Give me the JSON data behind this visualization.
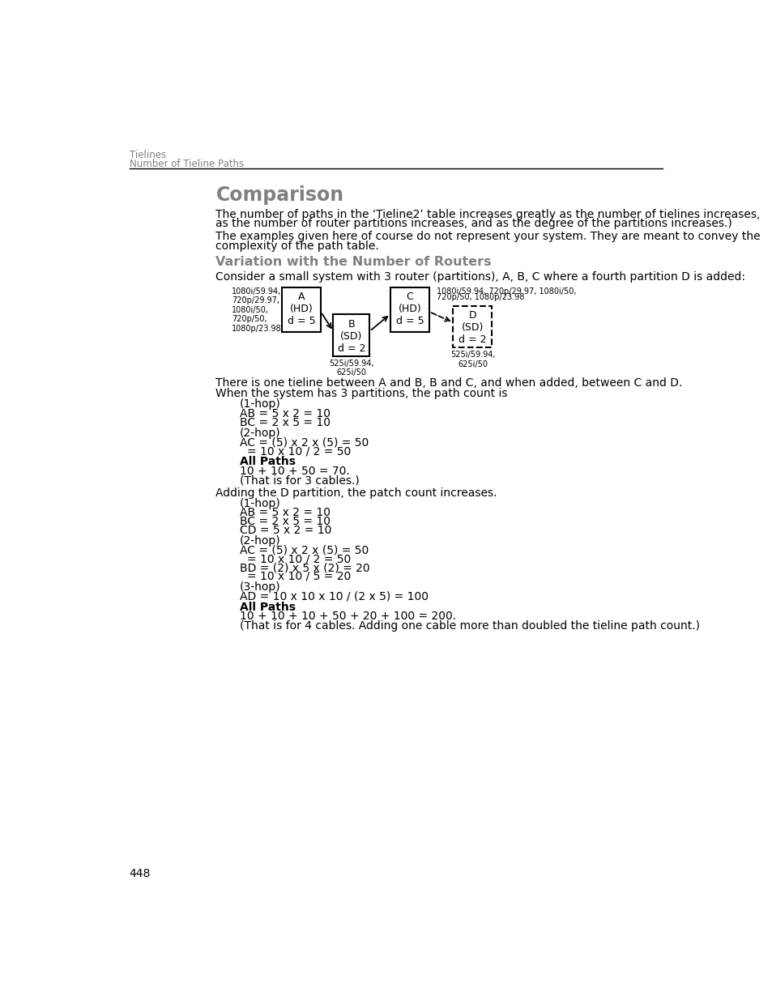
{
  "page_header_line1": "Tielines",
  "page_header_line2": "Number of Tieline Paths",
  "section_title": "Comparison",
  "section_title_color": "#808080",
  "para1a": "The number of paths in the ‘Tieline2’ table increases greatly as the number of tielines increases,",
  "para1b": "as the number of router partitions increases, and as the degree of the partitions increases.)",
  "para2a": "The examples given here of course do not represent your system. They are meant to convey the",
  "para2b": "complexity of the path table.",
  "subsection_title": "Variation with the Number of Routers",
  "subsection_title_color": "#808080",
  "consider_text": "Consider a small system with 3 router (partitions), A, B, C where a fourth partition D is added:",
  "diagram_label_left": "1080i/59.94,\n720p/29.97,\n1080i/50,\n720p/50,\n1080p/23.98",
  "diagram_label_right_1": "1080i/59.94, 720p/29.97, 1080i/50,",
  "diagram_label_right_2": "720p/50, 1080p/23.98",
  "diagram_label_b_below": "525i/59.94,\n625i/50",
  "diagram_label_d_below": "525i/59.94,\n625i/50",
  "text_block1": "There is one tieline between A and B, B and C, and when added, between C and D.",
  "text_block2": "When the system has 3 partitions, the path count is",
  "adding_text": "Adding the D partition, the patch count increases.",
  "page_number": "448",
  "background_color": "#ffffff",
  "text_color": "#000000",
  "header_color": "#808080"
}
